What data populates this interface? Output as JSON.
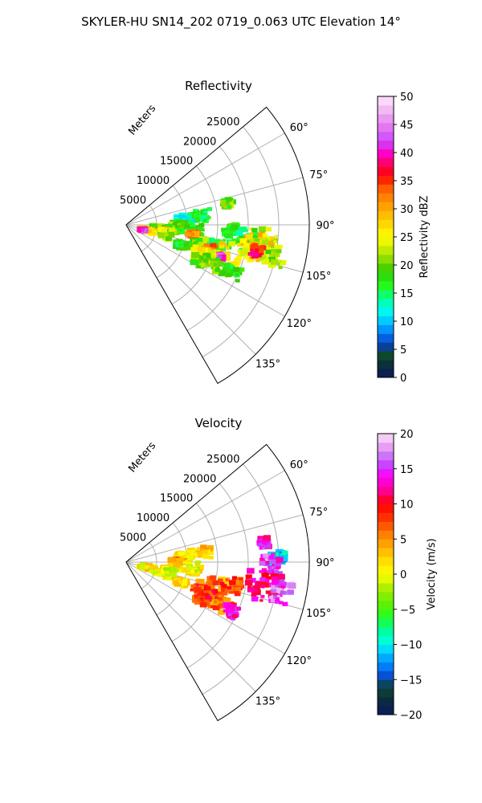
{
  "figure": {
    "title": "SKYLER-HU  SN14_202  0719_0.063 UTC Elevation 14°"
  },
  "chart_data": [
    {
      "type": "heatmap",
      "projection": "polar-sector",
      "title": "Reflectivity",
      "radial_label": "Meters",
      "radial_ticks": [
        5000,
        10000,
        15000,
        20000,
        25000
      ],
      "radial_tick_labels": [
        "5000",
        "10000",
        "15000",
        "20000",
        "25000"
      ],
      "rlim": [
        0,
        30000
      ],
      "theta_ticks_deg": [
        60,
        75,
        90,
        105,
        120,
        135
      ],
      "theta_tick_labels": [
        "60°",
        "75°",
        "90°",
        "105°",
        "120°",
        "135°"
      ],
      "theta_range_deg": [
        50,
        150
      ],
      "grid": true,
      "colorbar": {
        "label": "Reflectivity dBZ",
        "range": [
          0,
          50
        ],
        "ticks": [
          0,
          5,
          10,
          15,
          20,
          25,
          30,
          35,
          40,
          45,
          50
        ],
        "tick_labels": [
          "0",
          "5",
          "10",
          "15",
          "20",
          "25",
          "30",
          "35",
          "40",
          "45",
          "50"
        ]
      },
      "features": [
        {
          "theta": 78,
          "r": 17000,
          "dr": 900,
          "dtheta": 2.5,
          "value": 20
        },
        {
          "theta": 83,
          "r": 12200,
          "dr": 1800,
          "dtheta": 4,
          "value": 16
        },
        {
          "theta": 85,
          "r": 9500,
          "dr": 1300,
          "dtheta": 5,
          "value": 13
        },
        {
          "theta": 90,
          "r": 8500,
          "dr": 1200,
          "dtheta": 3,
          "value": 20
        },
        {
          "theta": 92,
          "r": 17500,
          "dr": 700,
          "dtheta": 2,
          "value": 18
        },
        {
          "theta": 94,
          "r": 4700,
          "dr": 400,
          "dtheta": 2,
          "value": 20
        },
        {
          "theta": 95,
          "r": 10400,
          "dr": 2200,
          "dtheta": 6,
          "value": 18
        },
        {
          "theta": 96,
          "r": 22500,
          "dr": 2500,
          "dtheta": 5,
          "value": 22
        },
        {
          "theta": 97,
          "r": 18500,
          "dr": 3000,
          "dtheta": 5.5,
          "value": 16
        },
        {
          "theta": 97,
          "r": 6500,
          "dr": 1200,
          "dtheta": 5,
          "value": 20
        },
        {
          "theta": 98,
          "r": 11000,
          "dr": 800,
          "dtheta": 2,
          "value": 32
        },
        {
          "theta": 99,
          "r": 6200,
          "dr": 600,
          "dtheta": 3,
          "value": 28
        },
        {
          "theta": 100,
          "r": 21500,
          "dr": 2800,
          "dtheta": 6,
          "value": 28
        },
        {
          "theta": 101,
          "r": 24500,
          "dr": 2000,
          "dtheta": 5,
          "value": 22
        },
        {
          "theta": 101,
          "r": 21800,
          "dr": 1000,
          "dtheta": 2.5,
          "value": 37
        },
        {
          "theta": 103,
          "r": 6800,
          "dr": 1000,
          "dtheta": 6,
          "value": 22
        },
        {
          "theta": 104,
          "r": 14500,
          "dr": 1800,
          "dtheta": 4,
          "value": 17
        },
        {
          "theta": 104,
          "r": 3300,
          "dr": 900,
          "dtheta": 4,
          "value": 24
        },
        {
          "theta": 105,
          "r": 3000,
          "dr": 600,
          "dtheta": 3,
          "value": 34
        },
        {
          "theta": 105,
          "r": 4000,
          "dr": 800,
          "dtheta": 3,
          "value": 29
        },
        {
          "theta": 106,
          "r": 16500,
          "dr": 3800,
          "dtheta": 6.5,
          "value": 26
        },
        {
          "theta": 106,
          "r": 12000,
          "dr": 1200,
          "dtheta": 4,
          "value": 20
        },
        {
          "theta": 107,
          "r": 2800,
          "dr": 400,
          "dtheta": 2,
          "value": 41
        },
        {
          "theta": 108,
          "r": 15000,
          "dr": 1800,
          "dtheta": 5,
          "value": 32
        },
        {
          "theta": 109,
          "r": 16300,
          "dr": 600,
          "dtheta": 1.5,
          "value": 42
        },
        {
          "theta": 110,
          "r": 9500,
          "dr": 1000,
          "dtheta": 3,
          "value": 17
        },
        {
          "theta": 112,
          "r": 13500,
          "dr": 1800,
          "dtheta": 5,
          "value": 25
        },
        {
          "theta": 114,
          "r": 19000,
          "dr": 1500,
          "dtheta": 3,
          "value": 18
        },
        {
          "theta": 114,
          "r": 16000,
          "dr": 2000,
          "dtheta": 4,
          "value": 20
        },
        {
          "theta": 116,
          "r": 13500,
          "dr": 1200,
          "dtheta": 3.5,
          "value": 20
        }
      ]
    },
    {
      "type": "heatmap",
      "projection": "polar-sector",
      "title": "Velocity",
      "radial_label": "Meters",
      "radial_ticks": [
        5000,
        10000,
        15000,
        20000,
        25000
      ],
      "radial_tick_labels": [
        "5000",
        "10000",
        "15000",
        "20000",
        "25000"
      ],
      "rlim": [
        0,
        30000
      ],
      "theta_ticks_deg": [
        60,
        75,
        90,
        105,
        120,
        135
      ],
      "theta_tick_labels": [
        "60°",
        "75°",
        "90°",
        "105°",
        "120°",
        "135°"
      ],
      "theta_range_deg": [
        50,
        150
      ],
      "grid": true,
      "colorbar": {
        "label": "Velocity (m/s)",
        "range": [
          -20,
          20
        ],
        "ticks": [
          -20,
          -15,
          -10,
          -5,
          0,
          5,
          10,
          15,
          20
        ],
        "tick_labels": [
          "−20",
          "−15",
          "−10",
          "−5",
          "0",
          "5",
          "10",
          "15",
          "20"
        ]
      },
      "features": [
        {
          "theta": 82,
          "r": 22800,
          "dr": 700,
          "dtheta": 2,
          "value": 14
        },
        {
          "theta": 83,
          "r": 12300,
          "dr": 1800,
          "dtheta": 4,
          "value": 3
        },
        {
          "theta": 85,
          "r": 9500,
          "dr": 1300,
          "dtheta": 5,
          "value": 2
        },
        {
          "theta": 88,
          "r": 25600,
          "dr": 500,
          "dtheta": 2,
          "value": -11
        },
        {
          "theta": 89,
          "r": 24300,
          "dr": 500,
          "dtheta": 2,
          "value": -11
        },
        {
          "theta": 90,
          "r": 8500,
          "dr": 1200,
          "dtheta": 3,
          "value": 4
        },
        {
          "theta": 92,
          "r": 23500,
          "dr": 1800,
          "dtheta": 5,
          "value": 15
        },
        {
          "theta": 95,
          "r": 10400,
          "dr": 2200,
          "dtheta": 6,
          "value": 1
        },
        {
          "theta": 98,
          "r": 11000,
          "dr": 800,
          "dtheta": 2,
          "value": 0
        },
        {
          "theta": 100,
          "r": 22800,
          "dr": 2800,
          "dtheta": 6,
          "value": 12
        },
        {
          "theta": 101,
          "r": 26000,
          "dr": 1500,
          "dtheta": 4,
          "value": 16
        },
        {
          "theta": 102,
          "r": 18000,
          "dr": 1500,
          "dtheta": 4,
          "value": 8
        },
        {
          "theta": 103,
          "r": 6800,
          "dr": 1000,
          "dtheta": 6,
          "value": 2
        },
        {
          "theta": 104,
          "r": 3500,
          "dr": 1200,
          "dtheta": 5,
          "value": 1
        },
        {
          "theta": 105,
          "r": 6200,
          "dr": 1800,
          "dtheta": 6,
          "value": 0
        },
        {
          "theta": 105,
          "r": 14500,
          "dr": 2500,
          "dtheta": 5,
          "value": 5
        },
        {
          "theta": 106,
          "r": 16500,
          "dr": 3000,
          "dtheta": 6,
          "value": 8
        },
        {
          "theta": 110,
          "r": 9500,
          "dr": 1000,
          "dtheta": 3,
          "value": 2
        },
        {
          "theta": 112,
          "r": 13500,
          "dr": 1800,
          "dtheta": 5,
          "value": 9
        },
        {
          "theta": 114,
          "r": 16000,
          "dr": 1800,
          "dtheta": 4,
          "value": 6
        },
        {
          "theta": 115,
          "r": 19000,
          "dr": 1200,
          "dtheta": 3,
          "value": 14
        },
        {
          "theta": 116,
          "r": 13800,
          "dr": 1000,
          "dtheta": 3,
          "value": 9
        }
      ]
    }
  ]
}
